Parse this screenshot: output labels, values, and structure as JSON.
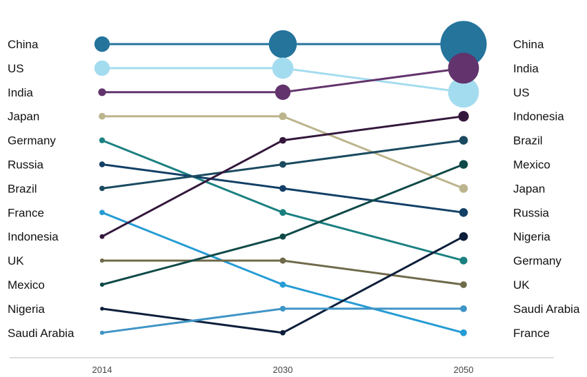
{
  "chart_data": {
    "type": "bump",
    "years": [
      "2014",
      "2030",
      "2050"
    ],
    "rank_axis": {
      "top_rank": 1,
      "bottom_rank": 13
    },
    "grid": false,
    "series": [
      {
        "name": "China",
        "ranks": [
          1,
          1,
          1
        ],
        "relative_size": [
          1.6,
          2.9,
          4.8
        ],
        "color": "#24749c"
      },
      {
        "name": "US",
        "ranks": [
          2,
          2,
          3
        ],
        "relative_size": [
          1.6,
          2.2,
          3.2
        ],
        "color": "#a4dcef"
      },
      {
        "name": "India",
        "ranks": [
          3,
          3,
          2
        ],
        "relative_size": [
          0.8,
          1.6,
          3.2
        ],
        "color": "#62336c"
      },
      {
        "name": "Japan",
        "ranks": [
          4,
          4,
          7
        ],
        "relative_size": [
          0.7,
          0.8,
          0.9
        ],
        "color": "#bcb48c"
      },
      {
        "name": "Germany",
        "ranks": [
          5,
          8,
          10
        ],
        "relative_size": [
          0.6,
          0.7,
          0.8
        ],
        "color": "#1b8080"
      },
      {
        "name": "Russia",
        "ranks": [
          6,
          7,
          8
        ],
        "relative_size": [
          0.6,
          0.7,
          0.9
        ],
        "color": "#123f66"
      },
      {
        "name": "Brazil",
        "ranks": [
          7,
          6,
          5
        ],
        "relative_size": [
          0.55,
          0.7,
          0.9
        ],
        "color": "#1b4a60"
      },
      {
        "name": "France",
        "ranks": [
          8,
          11,
          13
        ],
        "relative_size": [
          0.55,
          0.65,
          0.7
        ],
        "color": "#259cd4"
      },
      {
        "name": "Indonesia",
        "ranks": [
          9,
          5,
          4
        ],
        "relative_size": [
          0.5,
          0.7,
          1.1
        ],
        "color": "#34183c"
      },
      {
        "name": "UK",
        "ranks": [
          10,
          10,
          11
        ],
        "relative_size": [
          0.45,
          0.65,
          0.7
        ],
        "color": "#6f6a4a"
      },
      {
        "name": "Mexico",
        "ranks": [
          11,
          9,
          6
        ],
        "relative_size": [
          0.45,
          0.65,
          0.9
        ],
        "color": "#0f4a48"
      },
      {
        "name": "Nigeria",
        "ranks": [
          12,
          13,
          9
        ],
        "relative_size": [
          0.4,
          0.55,
          0.9
        ],
        "color": "#0c1e3a"
      },
      {
        "name": "Saudi Arabia",
        "ranks": [
          13,
          12,
          12
        ],
        "relative_size": [
          0.45,
          0.6,
          0.7
        ],
        "color": "#3f94c6"
      }
    ]
  }
}
